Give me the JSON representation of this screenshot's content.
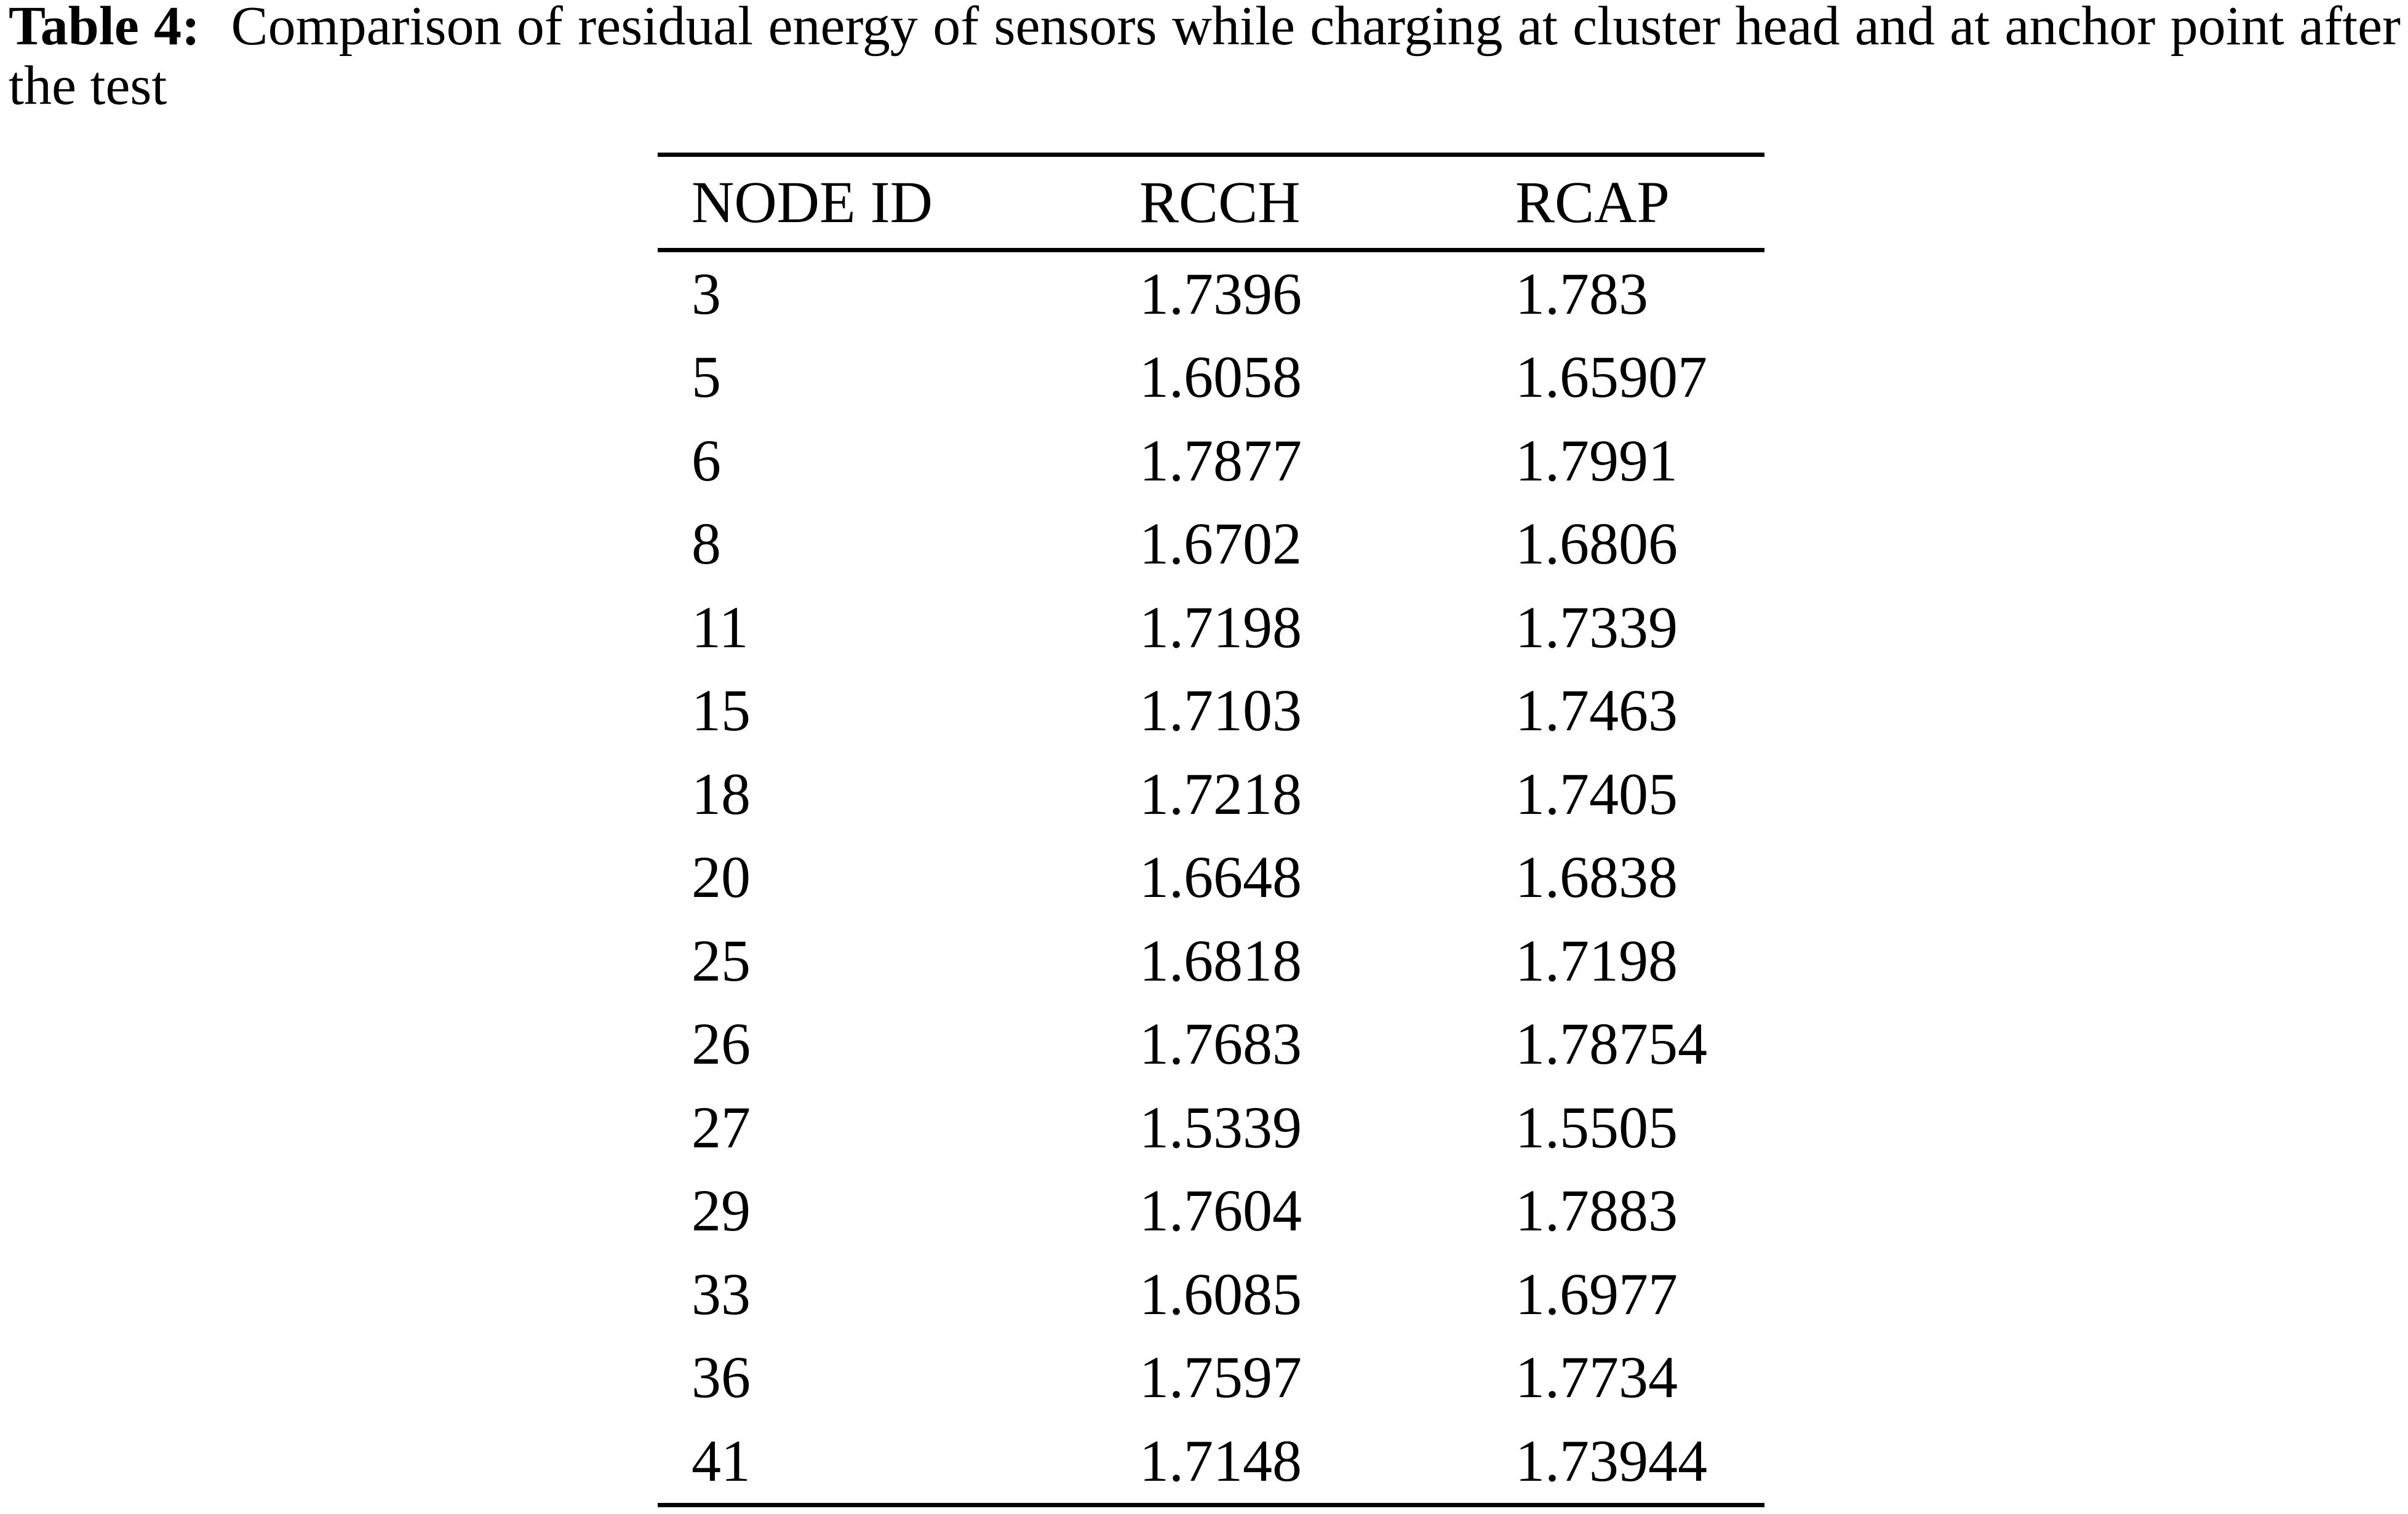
{
  "title": {
    "label": "Table 4:",
    "caption": "Comparison of residual energy of sensors while charging at cluster head and at anchor point after the test"
  },
  "table": {
    "columns": [
      "NODE ID",
      "RCCH",
      "RCAP"
    ],
    "rows": [
      [
        "3",
        "1.7396",
        "1.783"
      ],
      [
        "5",
        "1.6058",
        "1.65907"
      ],
      [
        "6",
        "1.7877",
        "1.7991"
      ],
      [
        "8",
        "1.6702",
        "1.6806"
      ],
      [
        "11",
        "1.7198",
        "1.7339"
      ],
      [
        "15",
        "1.7103",
        "1.7463"
      ],
      [
        "18",
        "1.7218",
        "1.7405"
      ],
      [
        "20",
        "1.6648",
        "1.6838"
      ],
      [
        "25",
        "1.6818",
        "1.7198"
      ],
      [
        "26",
        "1.7683",
        "1.78754"
      ],
      [
        "27",
        "1.5339",
        "1.5505"
      ],
      [
        "29",
        "1.7604",
        "1.7883"
      ],
      [
        "33",
        "1.6085",
        "1.6977"
      ],
      [
        "36",
        "1.7597",
        "1.7734"
      ],
      [
        "41",
        "1.7148",
        "1.73944"
      ]
    ]
  },
  "colors": {
    "text": "#000000",
    "background": "#ffffff",
    "rule": "#000000"
  }
}
